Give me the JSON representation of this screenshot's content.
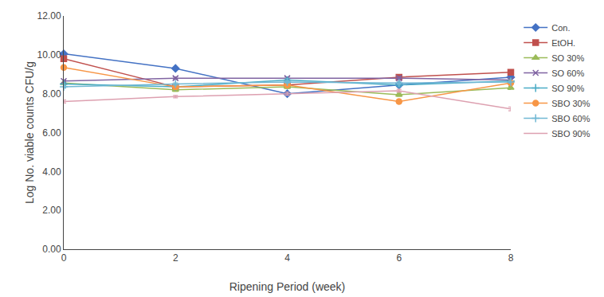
{
  "chart_data": {
    "type": "line",
    "x": [
      0,
      2,
      4,
      6,
      8
    ],
    "series": [
      {
        "name": "Con.",
        "values": [
          10.05,
          9.3,
          8.0,
          8.45,
          8.85
        ],
        "color": "#4472C4",
        "marker": "diamond",
        "yerr": [
          0.08,
          0.05,
          0.08,
          0.08,
          0.08
        ]
      },
      {
        "name": "EtOH.",
        "values": [
          9.8,
          8.35,
          8.45,
          8.85,
          9.1
        ],
        "color": "#C0504D",
        "marker": "square",
        "yerr": [
          0.08,
          0.08,
          0.08,
          0.1,
          0.08
        ]
      },
      {
        "name": "SO 30%",
        "values": [
          8.55,
          8.2,
          8.35,
          7.95,
          8.3
        ],
        "color": "#9BBB59",
        "marker": "triangle-up",
        "yerr": [
          0.08,
          0.08,
          0.08,
          0.08,
          0.08
        ]
      },
      {
        "name": "SO 60%",
        "values": [
          8.65,
          8.8,
          8.8,
          8.8,
          8.7
        ],
        "color": "#8064A2",
        "marker": "x",
        "yerr": [
          0.06,
          0.06,
          0.06,
          0.08,
          0.06
        ]
      },
      {
        "name": "SO 90%",
        "values": [
          8.5,
          8.35,
          8.7,
          8.45,
          8.65
        ],
        "color": "#4BACC6",
        "marker": "cross",
        "yerr": [
          0.08,
          0.06,
          0.08,
          0.08,
          0.08
        ]
      },
      {
        "name": "SBO 30%",
        "values": [
          9.35,
          8.35,
          8.45,
          7.6,
          8.55
        ],
        "color": "#F79646",
        "marker": "circle",
        "yerr": [
          0.08,
          0.08,
          0.08,
          0.1,
          0.08
        ]
      },
      {
        "name": "SBO 60%",
        "values": [
          8.35,
          8.5,
          8.6,
          8.55,
          8.6
        ],
        "color": "#70B8D4",
        "marker": "cross",
        "yerr": [
          0.06,
          0.06,
          0.06,
          0.06,
          0.06
        ]
      },
      {
        "name": "SBO 90%",
        "values": [
          7.6,
          7.85,
          8.0,
          8.15,
          7.22
        ],
        "color": "#DDA0B0",
        "marker": "none",
        "yerr": [
          0.08,
          0.06,
          0.08,
          0.08,
          0.1
        ]
      }
    ],
    "xlabel": "Ripening Period (week)",
    "ylabel": "Log No. viable counts CFU/g",
    "xlim": [
      0,
      8
    ],
    "xticks": [
      0,
      2,
      4,
      6,
      8
    ],
    "ylim": [
      0,
      12
    ],
    "yticks": [
      {
        "value": 0,
        "label": "0.00"
      },
      {
        "value": 2,
        "label": "2.00"
      },
      {
        "value": 4,
        "label": "4.00"
      },
      {
        "value": 6,
        "label": "6.00"
      },
      {
        "value": 8,
        "label": "8.00"
      },
      {
        "value": 10,
        "label": "10.00"
      },
      {
        "value": 12,
        "label": "12.00"
      }
    ],
    "grid": false,
    "legend": "right"
  }
}
